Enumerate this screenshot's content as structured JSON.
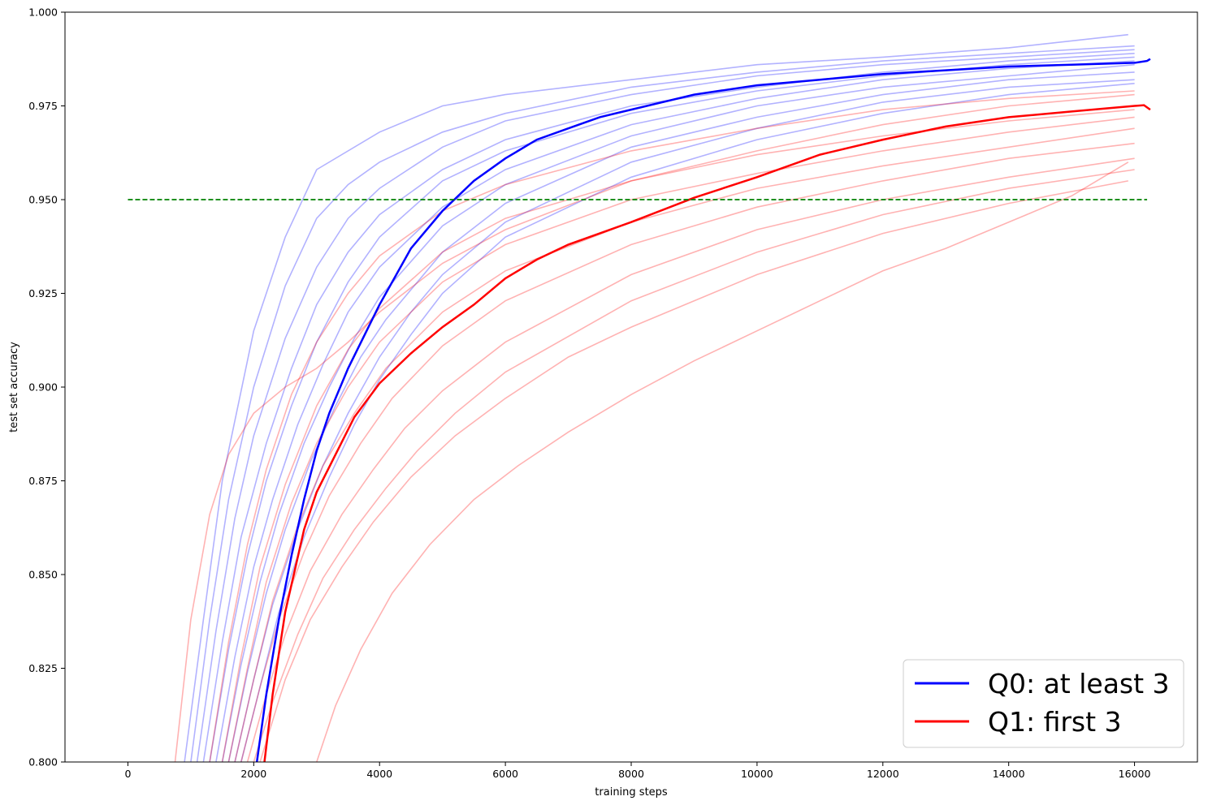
{
  "chart_data": {
    "type": "line",
    "title": "",
    "xlabel": "training steps",
    "ylabel": "test set accuracy",
    "xlim": [
      -1000,
      17000
    ],
    "ylim": [
      0.8,
      1.0
    ],
    "x_ticks": [
      0,
      2000,
      4000,
      6000,
      8000,
      10000,
      12000,
      14000,
      16000
    ],
    "y_ticks": [
      0.8,
      0.825,
      0.85,
      0.875,
      0.9,
      0.925,
      0.95,
      0.975,
      1.0
    ],
    "y_tick_labels": [
      "0.800",
      "0.825",
      "0.850",
      "0.875",
      "0.900",
      "0.925",
      "0.950",
      "0.975",
      "1.000"
    ],
    "grid": false,
    "legend_position": "lower-right",
    "threshold": {
      "y": 0.95,
      "x_start": 0,
      "x_end": 16200,
      "color": "#008000",
      "style": "dashed"
    },
    "series": [
      {
        "name": "Q0: at least 3",
        "color": "#0000ff",
        "x": [
          2050,
          2200,
          2400,
          2600,
          2800,
          3000,
          3200,
          3500,
          4000,
          4500,
          5000,
          5500,
          6000,
          6500,
          7000,
          7500,
          8000,
          9000,
          10000,
          11000,
          12000,
          13000,
          14000,
          15000,
          16000,
          16200,
          16250
        ],
        "y": [
          0.8,
          0.818,
          0.838,
          0.855,
          0.87,
          0.883,
          0.893,
          0.905,
          0.922,
          0.937,
          0.947,
          0.955,
          0.961,
          0.966,
          0.969,
          0.972,
          0.974,
          0.978,
          0.9805,
          0.982,
          0.9835,
          0.9845,
          0.9855,
          0.986,
          0.9865,
          0.987,
          0.9875
        ]
      },
      {
        "name": "Q1: first 3",
        "color": "#ff0000",
        "x": [
          2170,
          2300,
          2500,
          2800,
          3000,
          3300,
          3600,
          4000,
          4500,
          5000,
          5500,
          6000,
          6500,
          7000,
          7500,
          8000,
          9000,
          10000,
          11000,
          12000,
          13000,
          14000,
          15000,
          16000,
          16150,
          16250
        ],
        "y": [
          0.8,
          0.818,
          0.84,
          0.862,
          0.872,
          0.882,
          0.892,
          0.901,
          0.909,
          0.916,
          0.922,
          0.929,
          0.934,
          0.938,
          0.941,
          0.944,
          0.9505,
          0.956,
          0.962,
          0.966,
          0.9695,
          0.972,
          0.9735,
          0.975,
          0.9752,
          0.974
        ]
      }
    ],
    "individual_runs": {
      "Q0": {
        "color": "#0000ff",
        "alpha": 0.3,
        "runs": [
          {
            "x": [
              900,
              1200,
              1500,
              2000,
              2500,
              3000,
              4000,
              5000,
              6000,
              8000,
              10000,
              12000,
              14000,
              15900
            ],
            "y": [
              0.8,
              0.838,
              0.875,
              0.915,
              0.94,
              0.958,
              0.968,
              0.975,
              0.978,
              0.982,
              0.986,
              0.988,
              0.9905,
              0.994
            ]
          },
          {
            "x": [
              1000,
              1300,
              1600,
              2000,
              2500,
              3000,
              3500,
              4000,
              5000,
              6000,
              8000,
              10000,
              12000,
              14000,
              16000
            ],
            "y": [
              0.8,
              0.838,
              0.87,
              0.9,
              0.927,
              0.945,
              0.954,
              0.96,
              0.968,
              0.973,
              0.98,
              0.984,
              0.987,
              0.989,
              0.991
            ]
          },
          {
            "x": [
              1100,
              1400,
              1700,
              2000,
              2500,
              3000,
              3500,
              4000,
              5000,
              6000,
              8000,
              10000,
              12000,
              14000,
              16000
            ],
            "y": [
              0.8,
              0.835,
              0.865,
              0.887,
              0.913,
              0.932,
              0.945,
              0.953,
              0.964,
              0.971,
              0.978,
              0.983,
              0.986,
              0.988,
              0.99
            ]
          },
          {
            "x": [
              1200,
              1500,
              1800,
              2200,
              2600,
              3000,
              3500,
              4000,
              5000,
              6000,
              8000,
              10000,
              12000,
              14000,
              16000
            ],
            "y": [
              0.8,
              0.832,
              0.86,
              0.885,
              0.905,
              0.922,
              0.936,
              0.946,
              0.958,
              0.966,
              0.975,
              0.98,
              0.984,
              0.987,
              0.989
            ]
          },
          {
            "x": [
              1300,
              1600,
              1900,
              2200,
              2600,
              3000,
              3500,
              4000,
              5000,
              6000,
              8000,
              10000,
              12000,
              14000,
              16000
            ],
            "y": [
              0.8,
              0.83,
              0.855,
              0.875,
              0.895,
              0.912,
              0.928,
              0.94,
              0.955,
              0.963,
              0.973,
              0.979,
              0.983,
              0.986,
              0.988
            ]
          },
          {
            "x": [
              1400,
              1700,
              2000,
              2300,
              2700,
              3100,
              3500,
              4000,
              5000,
              6000,
              8000,
              10000,
              12000,
              14000,
              16000
            ],
            "y": [
              0.8,
              0.828,
              0.852,
              0.87,
              0.89,
              0.906,
              0.92,
              0.932,
              0.948,
              0.958,
              0.97,
              0.977,
              0.982,
              0.985,
              0.987
            ]
          },
          {
            "x": [
              1500,
              1800,
              2100,
              2400,
              2800,
              3200,
              3600,
              4000,
              5000,
              6000,
              8000,
              10000,
              12000,
              14000,
              16000
            ],
            "y": [
              0.8,
              0.826,
              0.848,
              0.866,
              0.885,
              0.9,
              0.913,
              0.924,
              0.943,
              0.954,
              0.967,
              0.975,
              0.98,
              0.983,
              0.986
            ]
          },
          {
            "x": [
              1600,
              1900,
              2200,
              2500,
              2900,
              3300,
              3700,
              4100,
              5000,
              6000,
              8000,
              10000,
              12000,
              14000,
              16000
            ],
            "y": [
              0.8,
              0.824,
              0.845,
              0.862,
              0.88,
              0.895,
              0.908,
              0.918,
              0.936,
              0.949,
              0.964,
              0.972,
              0.978,
              0.982,
              0.984
            ]
          },
          {
            "x": [
              1700,
              2000,
              2300,
              2700,
              3100,
              3500,
              4000,
              4500,
              5000,
              6000,
              8000,
              10000,
              12000,
              14000,
              16000
            ],
            "y": [
              0.8,
              0.822,
              0.842,
              0.862,
              0.879,
              0.893,
              0.908,
              0.92,
              0.93,
              0.944,
              0.96,
              0.969,
              0.976,
              0.98,
              0.982
            ]
          },
          {
            "x": [
              1800,
              2100,
              2400,
              2800,
              3200,
              3600,
              4000,
              4500,
              5000,
              6000,
              8000,
              10000,
              12000,
              14000,
              16000
            ],
            "y": [
              0.8,
              0.82,
              0.84,
              0.86,
              0.876,
              0.89,
              0.902,
              0.914,
              0.925,
              0.94,
              0.956,
              0.966,
              0.973,
              0.978,
              0.981
            ]
          }
        ]
      },
      "Q1": {
        "color": "#ff0000",
        "alpha": 0.3,
        "runs": [
          {
            "x": [
              750,
              1000,
              1300,
              1600,
              2000,
              2500,
              3000,
              3500,
              4000,
              5000,
              6000,
              8000,
              10000,
              12000,
              14000,
              16000
            ],
            "y": [
              0.8,
              0.838,
              0.866,
              0.882,
              0.893,
              0.9,
              0.905,
              0.912,
              0.92,
              0.933,
              0.942,
              0.955,
              0.963,
              0.97,
              0.975,
              0.978
            ]
          },
          {
            "x": [
              1300,
              1600,
              1900,
              2200,
              2600,
              3000,
              3500,
              4000,
              5000,
              6000,
              8000,
              10000,
              12000,
              14000,
              16000
            ],
            "y": [
              0.8,
              0.832,
              0.858,
              0.878,
              0.898,
              0.912,
              0.925,
              0.935,
              0.947,
              0.954,
              0.963,
              0.969,
              0.974,
              0.977,
              0.979
            ]
          },
          {
            "x": [
              1500,
              1800,
              2100,
              2500,
              3000,
              3500,
              4000,
              5000,
              6000,
              8000,
              10000,
              12000,
              14000,
              16000
            ],
            "y": [
              0.8,
              0.828,
              0.852,
              0.874,
              0.895,
              0.91,
              0.921,
              0.936,
              0.945,
              0.955,
              0.962,
              0.967,
              0.971,
              0.974
            ]
          },
          {
            "x": [
              1600,
              1900,
              2200,
              2600,
              3000,
              3500,
              4000,
              5000,
              6000,
              8000,
              10000,
              12000,
              14000,
              16000
            ],
            "y": [
              0.8,
              0.825,
              0.848,
              0.869,
              0.885,
              0.9,
              0.912,
              0.928,
              0.938,
              0.95,
              0.957,
              0.963,
              0.968,
              0.972
            ]
          },
          {
            "x": [
              1700,
              2000,
              2300,
              2700,
              3100,
              3600,
              4100,
              5000,
              6000,
              8000,
              10000,
              12000,
              14000,
              16000
            ],
            "y": [
              0.8,
              0.822,
              0.843,
              0.863,
              0.879,
              0.893,
              0.905,
              0.92,
              0.931,
              0.944,
              0.953,
              0.959,
              0.964,
              0.969
            ]
          },
          {
            "x": [
              1800,
              2100,
              2400,
              2800,
              3200,
              3700,
              4200,
              5000,
              6000,
              8000,
              10000,
              12000,
              14000,
              16000
            ],
            "y": [
              0.8,
              0.82,
              0.838,
              0.856,
              0.871,
              0.885,
              0.897,
              0.911,
              0.923,
              0.938,
              0.948,
              0.955,
              0.961,
              0.965
            ]
          },
          {
            "x": [
              1900,
              2200,
              2500,
              2900,
              3400,
              3900,
              4400,
              5000,
              6000,
              8000,
              10000,
              12000,
              14000,
              16000
            ],
            "y": [
              0.8,
              0.818,
              0.834,
              0.851,
              0.866,
              0.878,
              0.889,
              0.899,
              0.912,
              0.93,
              0.942,
              0.95,
              0.956,
              0.961
            ]
          },
          {
            "x": [
              2000,
              2300,
              2700,
              3100,
              3600,
              4100,
              4600,
              5200,
              6000,
              8000,
              10000,
              12000,
              14000,
              16000
            ],
            "y": [
              0.8,
              0.816,
              0.834,
              0.849,
              0.862,
              0.873,
              0.883,
              0.893,
              0.904,
              0.923,
              0.936,
              0.946,
              0.953,
              0.958
            ]
          },
          {
            "x": [
              2100,
              2500,
              2900,
              3400,
              3900,
              4500,
              5200,
              6000,
              7000,
              8000,
              10000,
              12000,
              14000,
              15900
            ],
            "y": [
              0.8,
              0.822,
              0.838,
              0.852,
              0.864,
              0.876,
              0.887,
              0.897,
              0.908,
              0.916,
              0.93,
              0.941,
              0.949,
              0.955
            ]
          },
          {
            "x": [
              3000,
              3300,
              3700,
              4200,
              4800,
              5500,
              6200,
              7000,
              8000,
              9000,
              10000,
              11000,
              12000,
              13000,
              14000,
              15000,
              15900
            ],
            "y": [
              0.8,
              0.815,
              0.83,
              0.845,
              0.858,
              0.87,
              0.879,
              0.888,
              0.898,
              0.907,
              0.915,
              0.923,
              0.931,
              0.937,
              0.944,
              0.951,
              0.96
            ]
          }
        ]
      }
    }
  }
}
